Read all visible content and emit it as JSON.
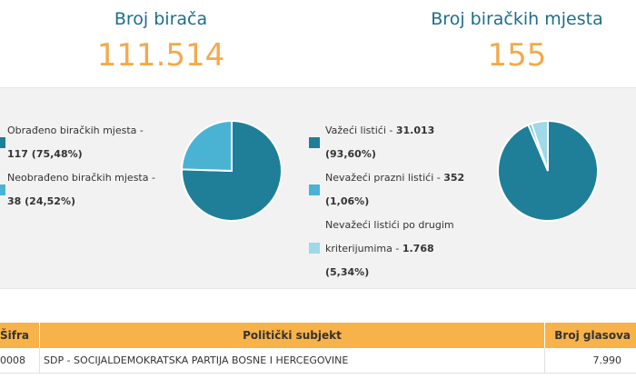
{
  "stats": {
    "voters_label": "Broj birača",
    "voters_value": "111.514",
    "stations_label": "Broj biračkih mjesta",
    "stations_value": "155"
  },
  "colors": {
    "accent_dark": "#1f7f99",
    "accent_mid": "#4ab3d4",
    "accent_light": "#9fd8e8",
    "value_orange": "#f5a94a",
    "header_orange": "#f7b24a"
  },
  "stations_chart": {
    "items": [
      {
        "label_line1": "Obrađeno biračkih mjesta -",
        "label_line2": "117 (75,48%)",
        "percent": 75.48,
        "color": "#1f7f99"
      },
      {
        "label_line1": "Neobrađeno biračkih mjesta -",
        "label_line2": "38 (24,52%)",
        "percent": 24.52,
        "color": "#4ab3d4"
      }
    ]
  },
  "ballots_chart": {
    "items": [
      {
        "label_line1": "Važeći listići - ",
        "label_bold1": "31.013",
        "label_line2": "(93,60%)",
        "percent": 93.6,
        "color": "#1f7f99"
      },
      {
        "label_line1": "Nevažeći prazni listići - ",
        "label_bold1": "352",
        "label_line2": "(1,06%)",
        "percent": 1.06,
        "color": "#4ab3d4"
      },
      {
        "label_line1": "Nevažeći listići po drugim",
        "label_line2a": "kriterijumima - ",
        "label_bold2": "1.768",
        "label_line3": "(5,34%)",
        "percent": 5.34,
        "color": "#9fd8e8"
      }
    ]
  },
  "table": {
    "headers": {
      "code": "Šifra",
      "subject": "Politički subjekt",
      "votes": "Broj glasova"
    },
    "rows": [
      {
        "code": "0008",
        "subject": "SDP - SOCIJALDEMOKRATSKA PARTIJA BOSNE I HERCEGOVINE",
        "votes": "7.990"
      }
    ]
  }
}
